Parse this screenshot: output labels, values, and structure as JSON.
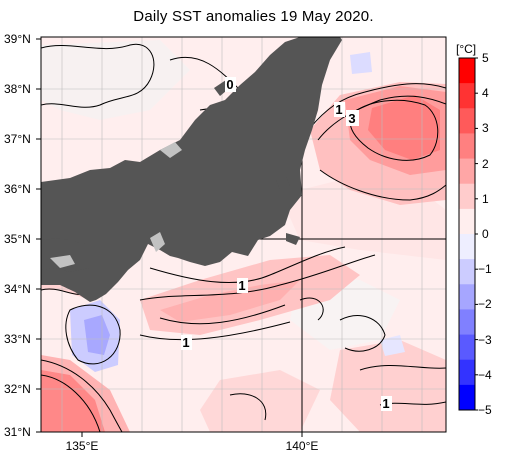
{
  "title": "Daily SST anomalies 19 May 2020.",
  "lat_ticks": [
    "39°N",
    "38°N",
    "37°N",
    "36°N",
    "35°N",
    "34°N",
    "33°N",
    "32°N",
    "31°N"
  ],
  "lon_ticks": [
    "135°E",
    "140°E"
  ],
  "colorbar": {
    "unit": "[°C]",
    "ticks": [
      "5",
      "4",
      "3",
      "2",
      "1",
      "0",
      "−1",
      "−2",
      "−3",
      "−4",
      "−5"
    ],
    "colors": [
      "#ff0000",
      "#ff3333",
      "#ff5a5a",
      "#ff8080",
      "#ffa6a6",
      "#ffcccc",
      "#ffeeee",
      "#eeeeff",
      "#ccccff",
      "#a6a6ff",
      "#8080ff",
      "#5a5aff",
      "#3333ff",
      "#0000ff"
    ]
  },
  "contour_labels": {
    "c0": "0",
    "c1_north": "1",
    "c3": "3",
    "c1_east": "1",
    "c1_center": "1",
    "c1_south": "1"
  },
  "colors": {
    "land": "#555555",
    "lake": "#c0c0c0",
    "grid": "#bbbbbb"
  }
}
